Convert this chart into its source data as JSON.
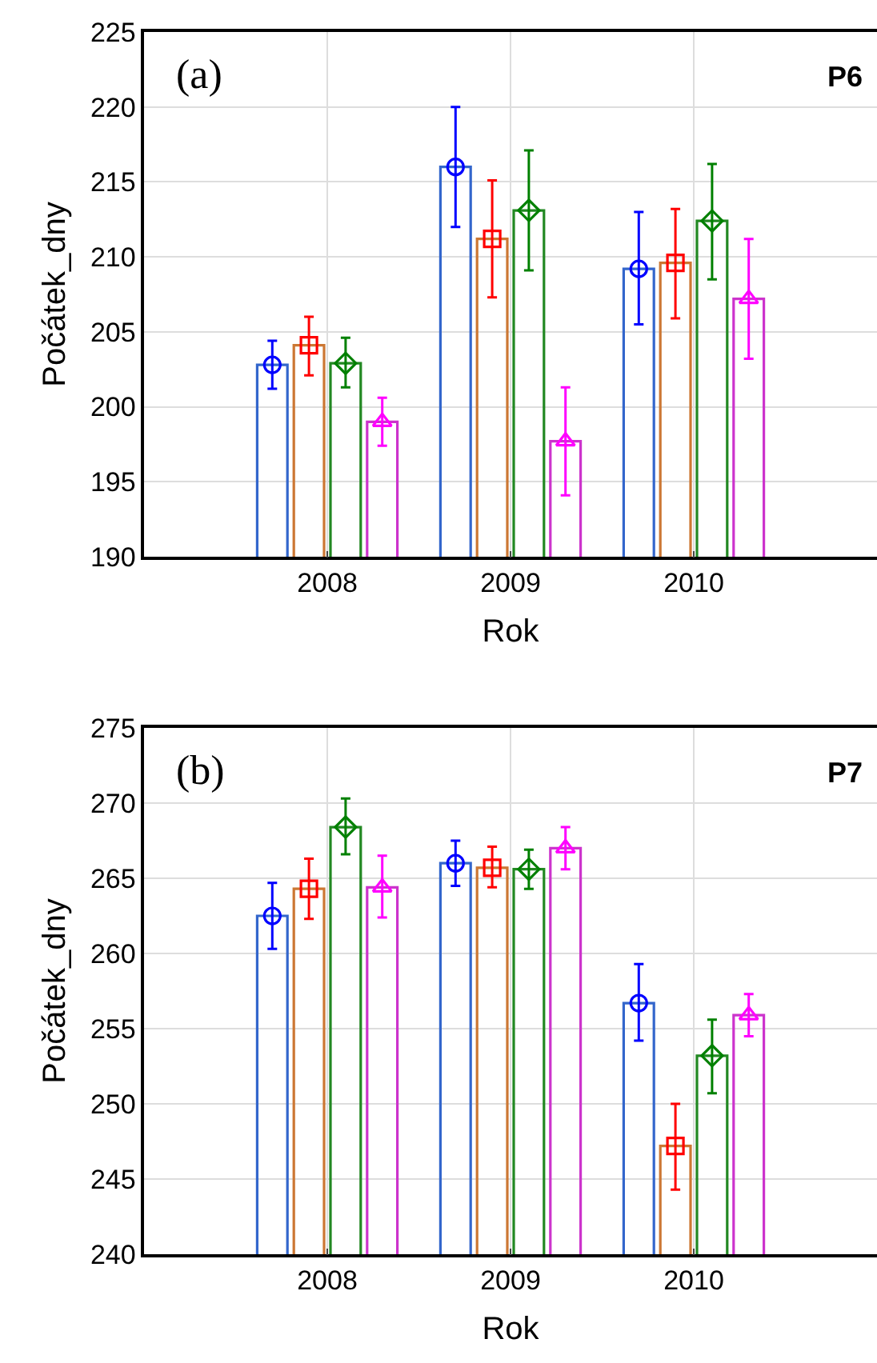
{
  "chart_data": [
    {
      "type": "bar",
      "xlabel": "Rok",
      "ylabel": "Počátek_dny",
      "categories": [
        "2008",
        "2009",
        "2010"
      ],
      "ylim": [
        190,
        225
      ],
      "yticks": [
        190,
        195,
        200,
        205,
        210,
        215,
        220,
        225
      ],
      "grid": true,
      "annotations": [
        "(a)",
        "P6"
      ],
      "series": [
        {
          "color": "#3366cc",
          "values": [
            202.8,
            216.0,
            209.2
          ]
        },
        {
          "color": "#cc7733",
          "values": [
            204.1,
            211.2,
            209.6
          ]
        },
        {
          "color": "#228822",
          "values": [
            202.9,
            213.1,
            212.4
          ]
        },
        {
          "color": "#cc33cc",
          "values": [
            199.0,
            197.7,
            207.2
          ]
        },
        {
          "type": "scatter",
          "marker": "circle",
          "color": "#0000ff",
          "values": [
            202.8,
            216.0,
            209.2
          ],
          "errors": [
            [
              201.2,
              204.4
            ],
            [
              212.0,
              220.0
            ],
            [
              205.5,
              213.0
            ]
          ]
        },
        {
          "type": "scatter",
          "marker": "square",
          "color": "#ff0000",
          "values": [
            204.1,
            211.2,
            209.6
          ],
          "errors": [
            [
              202.1,
              206.0
            ],
            [
              207.3,
              215.1
            ],
            [
              205.9,
              213.2
            ]
          ]
        },
        {
          "type": "scatter",
          "marker": "diamond",
          "color": "#008000",
          "values": [
            202.9,
            213.1,
            212.4
          ],
          "errors": [
            [
              201.3,
              204.6
            ],
            [
              209.1,
              217.1
            ],
            [
              208.5,
              216.2
            ]
          ]
        },
        {
          "type": "scatter",
          "marker": "triangle",
          "color": "#ff00ff",
          "values": [
            199.0,
            197.7,
            207.2
          ],
          "errors": [
            [
              197.4,
              200.6
            ],
            [
              194.1,
              201.3
            ],
            [
              203.2,
              211.2
            ]
          ]
        }
      ]
    },
    {
      "type": "bar",
      "xlabel": "Rok",
      "ylabel": "Počátek_dny",
      "categories": [
        "2008",
        "2009",
        "2010"
      ],
      "ylim": [
        240,
        275
      ],
      "yticks": [
        240,
        245,
        250,
        255,
        260,
        265,
        270,
        275
      ],
      "grid": true,
      "annotations": [
        "(b)",
        "P7"
      ],
      "series": [
        {
          "color": "#3366cc",
          "values": [
            262.5,
            266.0,
            256.7
          ]
        },
        {
          "color": "#cc7733",
          "values": [
            264.3,
            265.7,
            247.2
          ]
        },
        {
          "color": "#228822",
          "values": [
            268.4,
            265.6,
            253.2
          ]
        },
        {
          "color": "#cc33cc",
          "values": [
            264.4,
            267.0,
            255.9
          ]
        },
        {
          "type": "scatter",
          "marker": "circle",
          "color": "#0000ff",
          "values": [
            262.5,
            266.0,
            256.7
          ],
          "errors": [
            [
              260.3,
              264.7
            ],
            [
              264.5,
              267.5
            ],
            [
              254.2,
              259.3
            ]
          ]
        },
        {
          "type": "scatter",
          "marker": "square",
          "color": "#ff0000",
          "values": [
            264.3,
            265.7,
            247.2
          ],
          "errors": [
            [
              262.3,
              266.3
            ],
            [
              264.4,
              267.1
            ],
            [
              244.3,
              250.0
            ]
          ]
        },
        {
          "type": "scatter",
          "marker": "diamond",
          "color": "#008000",
          "values": [
            268.4,
            265.6,
            253.2
          ],
          "errors": [
            [
              266.6,
              270.3
            ],
            [
              264.3,
              266.9
            ],
            [
              250.7,
              255.6
            ]
          ]
        },
        {
          "type": "scatter",
          "marker": "triangle",
          "color": "#ff00ff",
          "values": [
            264.4,
            267.0,
            255.9
          ],
          "errors": [
            [
              262.4,
              266.5
            ],
            [
              265.6,
              268.4
            ],
            [
              254.5,
              257.3
            ]
          ]
        }
      ]
    }
  ]
}
